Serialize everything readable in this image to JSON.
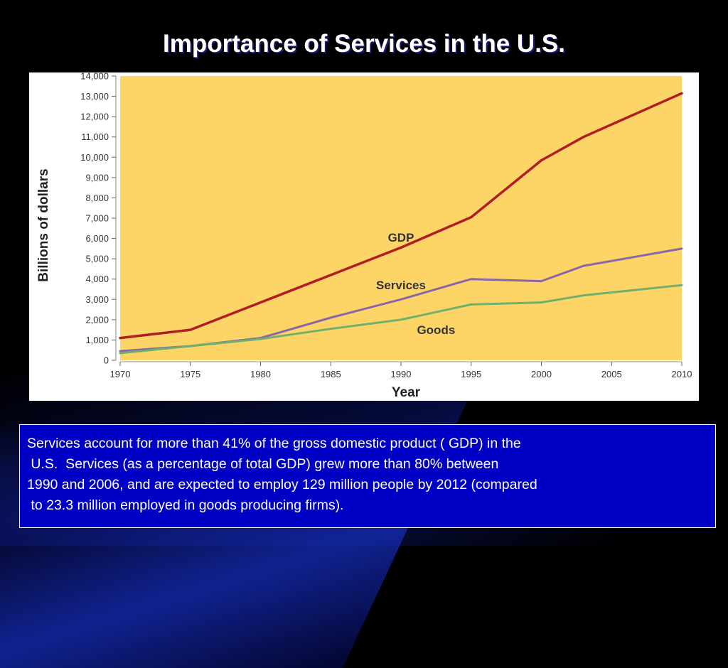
{
  "slide": {
    "title": "Importance of Services in the U.S.",
    "body_text": "Services account for more than 41% of the gross domestic product ( GDP) in the\n U.S.  Services (as a percentage of total GDP) grew more than 80% between\n1990 and 2006, and are expected to employ 129 million people by 2012 (compared\n to 23.3 million employed in goods producing firms)."
  },
  "chart_data": {
    "type": "line",
    "title": "",
    "xlabel": "Year",
    "ylabel": "Billions of dollars",
    "xlim": [
      1970,
      2010
    ],
    "ylim": [
      0,
      14000
    ],
    "x_ticks": [
      "1970",
      "1975",
      "1980",
      "1985",
      "1990",
      "1995",
      "2000",
      "2005",
      "2010"
    ],
    "y_ticks": [
      "0",
      "1,000",
      "2,000",
      "3,000",
      "4,000",
      "5,000",
      "6,000",
      "7,000",
      "8,000",
      "9,000",
      "10,000",
      "11,000",
      "12,000",
      "13,000",
      "14,000"
    ],
    "grid": false,
    "plot_background": "#fdd567",
    "series": [
      {
        "name": "GDP",
        "color": "#b01e23",
        "x": [
          1970,
          1975,
          1980,
          1985,
          1990,
          1995,
          2000,
          2003,
          2010
        ],
        "y": [
          1100,
          1500,
          2850,
          4200,
          5550,
          7050,
          9850,
          11000,
          13150
        ]
      },
      {
        "name": "Services",
        "color": "#8866a8",
        "x": [
          1970,
          1975,
          1980,
          1985,
          1990,
          1995,
          2000,
          2003,
          2010
        ],
        "y": [
          450,
          700,
          1100,
          2100,
          3000,
          4000,
          3900,
          4650,
          5500
        ]
      },
      {
        "name": "Goods",
        "color": "#6fb06a",
        "x": [
          1970,
          1975,
          1980,
          1985,
          1990,
          1995,
          2000,
          2003,
          2010
        ],
        "y": [
          350,
          700,
          1050,
          1550,
          2000,
          2750,
          2850,
          3200,
          3700
        ]
      }
    ],
    "series_labels": [
      {
        "text": "GDP",
        "x": 1990,
        "y": 5850
      },
      {
        "text": "Services",
        "x": 1990,
        "y": 3500
      },
      {
        "text": "Goods",
        "x": 1992.5,
        "y": 1300
      }
    ]
  }
}
